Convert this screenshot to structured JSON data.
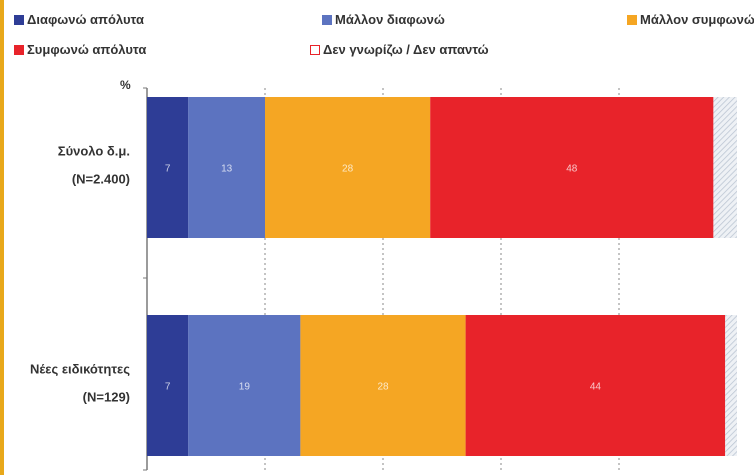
{
  "legend": {
    "entries": [
      {
        "label": "Διαφωνώ απόλυτα",
        "color": "#2e3d96"
      },
      {
        "label": "Μάλλον διαφωνώ",
        "color": "#5c73c0"
      },
      {
        "label": "Μάλλον συμφωνώ",
        "color": "#f5a623"
      },
      {
        "label": "Συμφωνώ απόλυτα",
        "color": "#e8232a"
      },
      {
        "label": "Δεν γνωρίζω / Δεν απαντώ",
        "color": "#ffffff"
      }
    ]
  },
  "unit_label": "%",
  "chart_data": {
    "type": "bar",
    "orientation": "horizontal",
    "stacked": true,
    "categories": [
      [
        "Σύνολο δ.μ.",
        "(N=2.400)"
      ],
      [
        "Νέες ειδικότητες",
        "(N=129)"
      ]
    ],
    "series": [
      {
        "name": "Διαφωνώ απόλυτα",
        "color": "#2e3d96",
        "values": [
          7,
          7
        ]
      },
      {
        "name": "Μάλλον διαφωνώ",
        "color": "#5c73c0",
        "values": [
          13,
          19
        ]
      },
      {
        "name": "Μάλλον συμφωνώ",
        "color": "#f5a623",
        "values": [
          28,
          28
        ]
      },
      {
        "name": "Συμφωνώ απόλυτα",
        "color": "#e8232a",
        "values": [
          48,
          44
        ]
      },
      {
        "name": "Δεν γνωρίζω / Δεν απαντώ",
        "color": "#dde3ea",
        "values": [
          4,
          2
        ]
      }
    ],
    "data_labels": [
      [
        "7",
        "13",
        "28",
        "48"
      ],
      [
        "7",
        "19",
        "28",
        "44"
      ]
    ],
    "xlim": [
      0,
      100
    ],
    "grid": true,
    "ylabel": "%"
  }
}
